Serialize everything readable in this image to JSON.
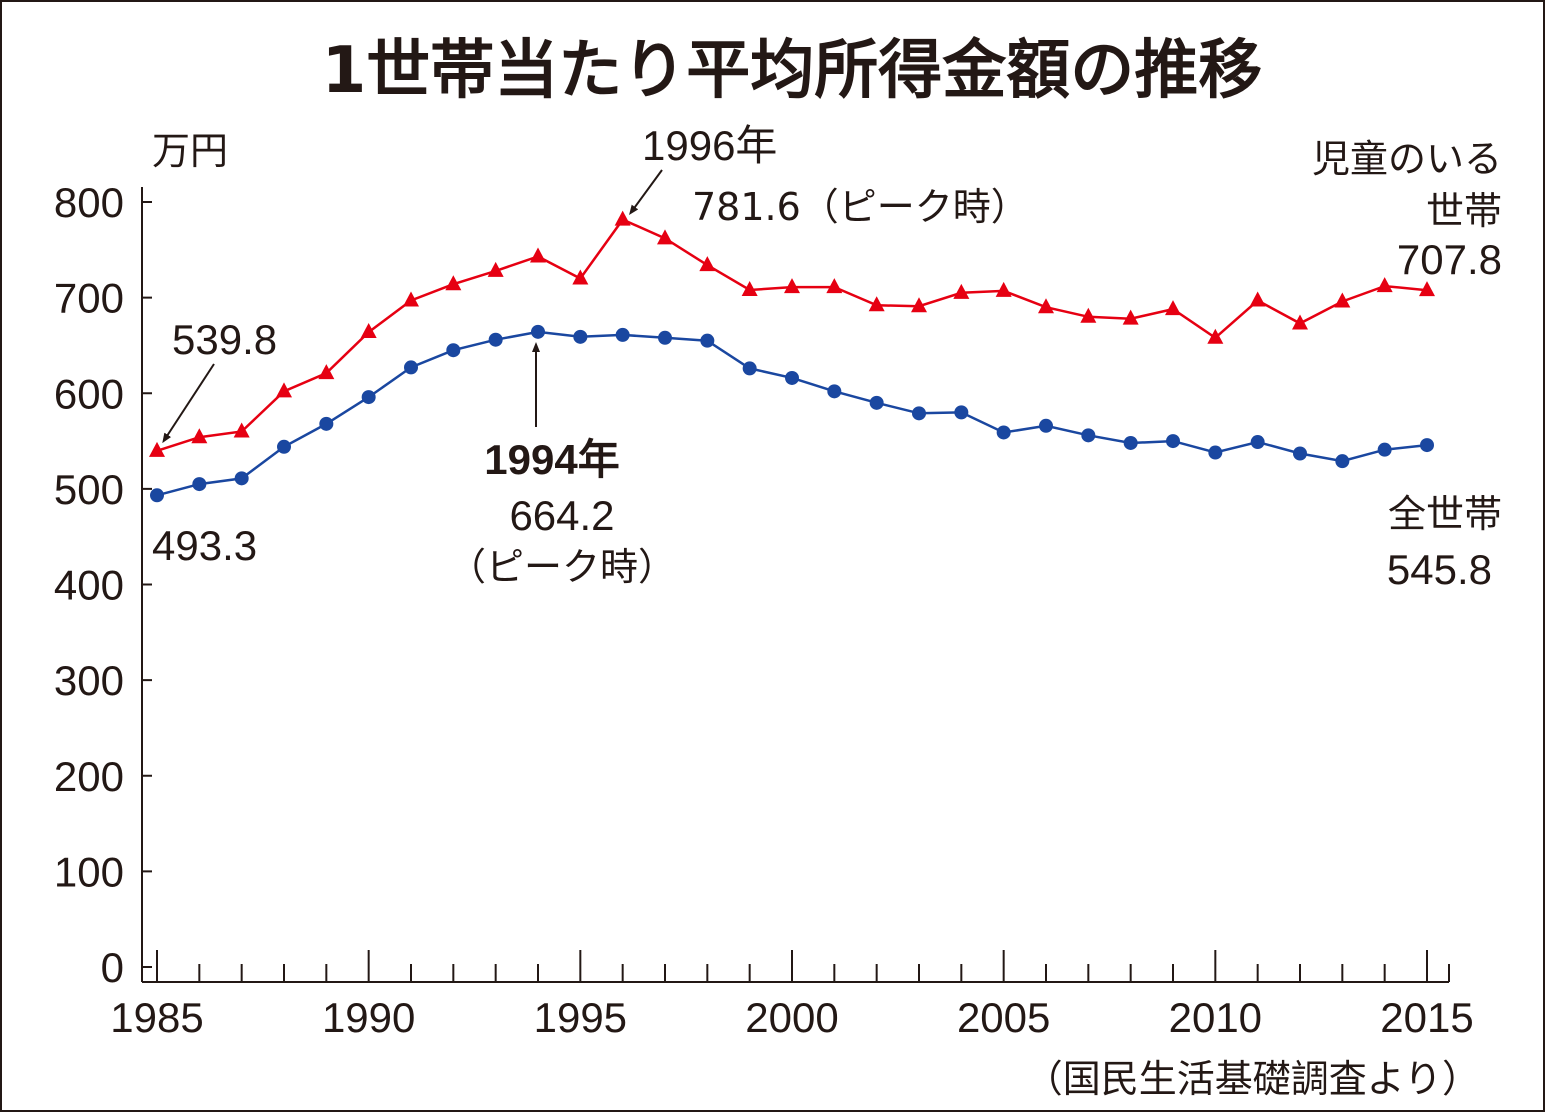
{
  "chart_data": {
    "type": "line",
    "title": "1世帯当たり平均所得金額の推移",
    "ylabel": "万円",
    "xlabel": "",
    "ylim": [
      0,
      800
    ],
    "xlim": [
      1985,
      2015
    ],
    "yticks": [
      0,
      100,
      200,
      300,
      400,
      500,
      600,
      700,
      800
    ],
    "xticks": [
      1985,
      1990,
      1995,
      2000,
      2005,
      2010,
      2015
    ],
    "source": "（国民生活基礎調査より）",
    "colors": {
      "children": "#e60012",
      "all": "#1a47a0",
      "ink": "#231815"
    },
    "series": [
      {
        "key": "children",
        "name": "児童のいる世帯",
        "name_line1": "児童のいる",
        "name_line2": "世帯",
        "marker": "triangle",
        "x": [
          1985,
          1986,
          1987,
          1988,
          1989,
          1990,
          1991,
          1992,
          1993,
          1994,
          1995,
          1996,
          1997,
          1998,
          1999,
          2000,
          2001,
          2002,
          2003,
          2004,
          2005,
          2006,
          2007,
          2008,
          2009,
          2010,
          2011,
          2012,
          2013,
          2014,
          2015
        ],
        "values": [
          539.8,
          554,
          560,
          602,
          621,
          664,
          697,
          714,
          728,
          743,
          720,
          781.6,
          762,
          734,
          708,
          711,
          711,
          692,
          691,
          705,
          707,
          690,
          680,
          678,
          688,
          658,
          697,
          673,
          696,
          712,
          707.8
        ]
      },
      {
        "key": "all",
        "name": "全世帯",
        "marker": "circle",
        "x": [
          1985,
          1986,
          1987,
          1988,
          1989,
          1990,
          1991,
          1992,
          1993,
          1994,
          1995,
          1996,
          1997,
          1998,
          1999,
          2000,
          2001,
          2002,
          2003,
          2004,
          2005,
          2006,
          2007,
          2008,
          2009,
          2010,
          2011,
          2012,
          2013,
          2014,
          2015
        ],
        "values": [
          493.3,
          505,
          511,
          544,
          568,
          596,
          627,
          645,
          656,
          664.2,
          659,
          661,
          658,
          655,
          626,
          616,
          602,
          590,
          579,
          580,
          559,
          566,
          556,
          548,
          550,
          538,
          549,
          537,
          529,
          541,
          545.8
        ]
      }
    ],
    "annotations": {
      "start_children": "539.8",
      "start_all": "493.3",
      "peak_children_year": "1996年",
      "peak_children_value": "781.6（ピーク時）",
      "peak_all_year": "1994年",
      "peak_all_value": "664.2",
      "peak_all_note": "（ピーク時）",
      "end_children": "707.8",
      "end_all_name": "全世帯",
      "end_all": "545.8"
    }
  }
}
